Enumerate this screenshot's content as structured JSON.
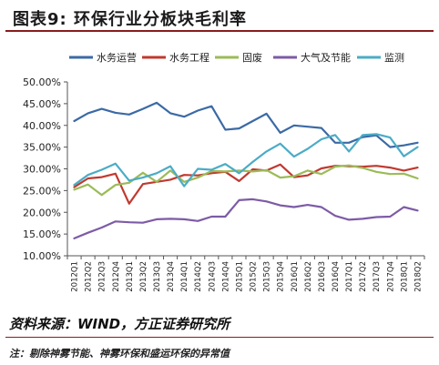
{
  "header": {
    "title": "图表9:  环保行业分板块毛利率"
  },
  "source": "资料来源：WIND，方正证券研究所",
  "note": "注：剔除神雾节能、神雾环保和盛运环保的异常值",
  "chart_data": {
    "type": "line",
    "title": "",
    "xlabel": "",
    "ylabel": "",
    "ylim": [
      10,
      50
    ],
    "yticks": [
      10,
      15,
      20,
      25,
      30,
      35,
      40,
      45,
      50
    ],
    "ytick_labels": [
      "10.00%",
      "15.00%",
      "20.00%",
      "25.00%",
      "30.00%",
      "35.00%",
      "40.00%",
      "45.00%",
      "50.00%"
    ],
    "grid": false,
    "legend": "top",
    "categories": [
      "2012Q1",
      "2012Q2",
      "2012Q3",
      "2012Q4",
      "2013Q1",
      "2013Q2",
      "2013Q3",
      "2013Q4",
      "2014Q1",
      "2014Q2",
      "2014Q3",
      "2014Q4",
      "2015Q1",
      "2015Q2",
      "2015Q3",
      "2015Q4",
      "2016Q1",
      "2016Q2",
      "2016Q3",
      "2016Q4",
      "2017Q1",
      "2017Q2",
      "2017Q3",
      "2017Q4",
      "2018Q1",
      "2018Q2"
    ],
    "series": [
      {
        "name": "水务运营",
        "color": "#3b6aa5",
        "values": [
          41.0,
          42.8,
          43.8,
          42.9,
          42.5,
          43.8,
          45.2,
          42.8,
          42.0,
          43.4,
          44.4,
          39.0,
          39.3,
          41.0,
          42.7,
          38.3,
          40.0,
          39.7,
          39.4,
          36.0,
          36.0,
          37.3,
          37.7,
          35.0,
          35.4,
          36.0
        ]
      },
      {
        "name": "水务工程",
        "color": "#c0392f",
        "values": [
          25.8,
          27.8,
          28.1,
          28.9,
          22.0,
          26.5,
          27.0,
          27.5,
          28.6,
          28.5,
          29.0,
          29.3,
          27.2,
          29.9,
          29.6,
          31.0,
          28.1,
          28.5,
          30.1,
          30.7,
          30.6,
          30.5,
          30.7,
          30.3,
          29.6,
          30.3
        ]
      },
      {
        "name": "固废",
        "color": "#9bbb59",
        "values": [
          25.2,
          26.4,
          24.0,
          26.3,
          26.8,
          29.1,
          27.0,
          29.6,
          27.0,
          28.0,
          29.5,
          29.4,
          29.6,
          29.4,
          29.7,
          28.0,
          28.3,
          29.6,
          28.8,
          30.5,
          30.8,
          30.2,
          29.3,
          28.8,
          28.9,
          27.8
        ]
      },
      {
        "name": "大气及节能",
        "color": "#7d5ba6",
        "values": [
          14.0,
          15.3,
          16.5,
          17.9,
          17.7,
          17.6,
          18.4,
          18.5,
          18.4,
          18.0,
          19.0,
          19.0,
          22.8,
          23.0,
          22.5,
          21.6,
          21.2,
          21.7,
          21.2,
          19.2,
          18.3,
          18.5,
          18.9,
          19.0,
          21.2,
          20.4
        ]
      },
      {
        "name": "监测",
        "color": "#4bacc6",
        "values": [
          26.3,
          28.6,
          29.8,
          31.2,
          27.3,
          28.0,
          29.0,
          30.6,
          26.0,
          30.0,
          29.8,
          31.1,
          29.0,
          31.6,
          34.0,
          35.8,
          32.8,
          34.6,
          36.8,
          37.8,
          34.0,
          37.8,
          38.0,
          37.2,
          32.9,
          35.0
        ]
      }
    ]
  }
}
